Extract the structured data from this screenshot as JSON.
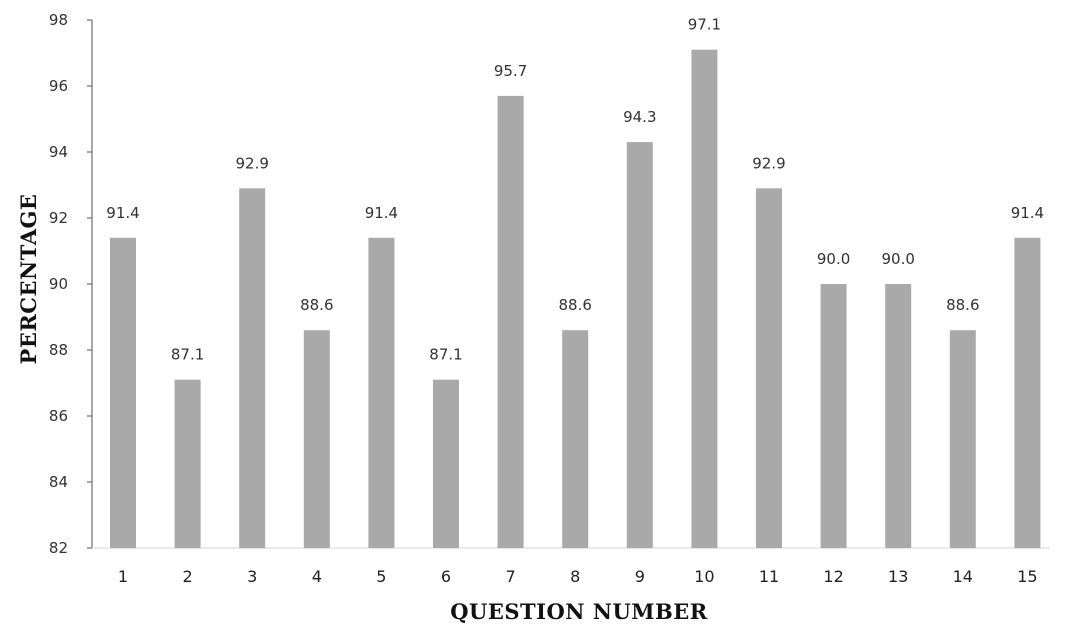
{
  "chart_data": {
    "type": "bar",
    "categories": [
      "1",
      "2",
      "3",
      "4",
      "5",
      "6",
      "7",
      "8",
      "9",
      "10",
      "11",
      "12",
      "13",
      "14",
      "15"
    ],
    "values": [
      91.4,
      87.1,
      92.9,
      88.6,
      91.4,
      87.1,
      95.7,
      88.6,
      94.3,
      97.1,
      92.9,
      90.0,
      90.0,
      88.6,
      91.4
    ],
    "data_labels": [
      "91.4",
      "87.1",
      "92.9",
      "88.6",
      "91.4",
      "87.1",
      "95.7",
      "88.6",
      "94.3",
      "97.1",
      "92.9",
      "90.0",
      "90.0",
      "88.6",
      "91.4"
    ],
    "title": "",
    "xlabel": "QUESTION NUMBER",
    "ylabel": "PERCENTAGE",
    "ylim": [
      82,
      98
    ],
    "yticks": [
      "82",
      "84",
      "86",
      "88",
      "90",
      "92",
      "94",
      "96",
      "98"
    ],
    "grid": false,
    "legend": "none",
    "bar_color": "#a9a9a9"
  }
}
